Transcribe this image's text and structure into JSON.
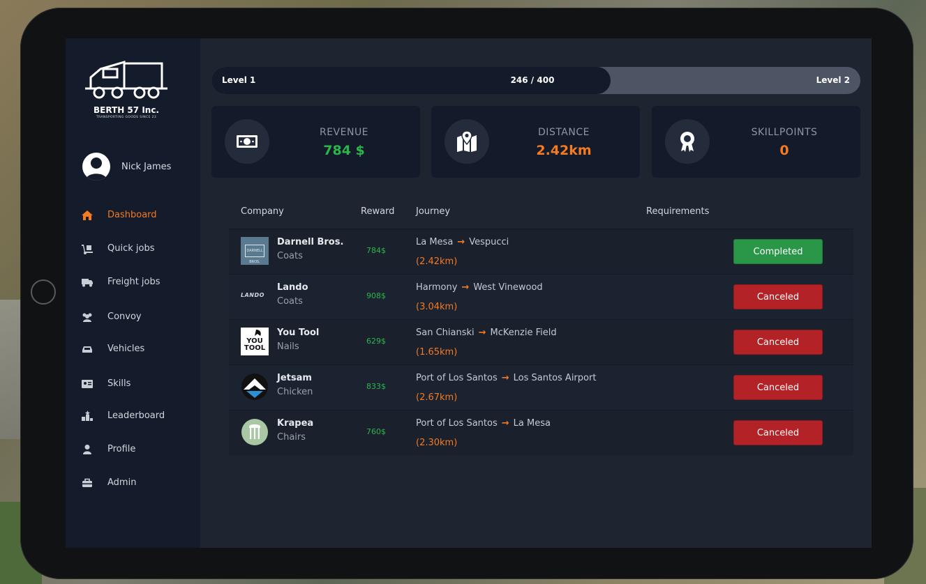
{
  "brand": {
    "name": "BERTH 57 Inc.",
    "tagline": "TRANSPORTING GOODS SINCE 23"
  },
  "user": {
    "name": "Nick James"
  },
  "nav": [
    {
      "label": "Dashboard",
      "icon": "home-icon",
      "active": true
    },
    {
      "label": "Quick jobs",
      "icon": "hand-truck-icon"
    },
    {
      "label": "Freight jobs",
      "icon": "truck-icon"
    },
    {
      "label": "Convoy",
      "icon": "users-icon"
    },
    {
      "label": "Vehicles",
      "icon": "car-icon"
    },
    {
      "label": "Skills",
      "icon": "id-card-icon"
    },
    {
      "label": "Leaderboard",
      "icon": "podium-icon"
    },
    {
      "label": "Profile",
      "icon": "user-icon"
    },
    {
      "label": "Admin",
      "icon": "toolbox-icon"
    }
  ],
  "level": {
    "current": "Level 1",
    "progress": "246 / 400",
    "next": "Level 2",
    "fraction": 0.615
  },
  "stats": [
    {
      "label": "REVENUE",
      "value": "784 $",
      "icon": "money-icon",
      "color": "#2bb64c"
    },
    {
      "label": "DISTANCE",
      "value": "2.42km",
      "icon": "map-icon",
      "color": "#f57a20"
    },
    {
      "label": "SKILLPOINTS",
      "value": "0",
      "icon": "award-icon",
      "color": "#f57a20"
    }
  ],
  "table": {
    "headers": {
      "company": "Company",
      "reward": "Reward",
      "journey": "Journey",
      "requirements": "Requirements"
    },
    "rows": [
      {
        "company": "Darnell Bros.",
        "cargo": "Coats",
        "logo_text": "DARNELL BROS.",
        "reward": "784$",
        "from": "La Mesa",
        "to": "Vespucci",
        "distance": "(2.42km)",
        "status": "Completed"
      },
      {
        "company": "Lando",
        "cargo": "Coats",
        "logo_text": "LANDO",
        "reward": "908$",
        "from": "Harmony",
        "to": "West Vinewood",
        "distance": "(3.04km)",
        "status": "Canceled"
      },
      {
        "company": "You Tool",
        "cargo": "Nails",
        "logo_text": "YOU TOOL",
        "reward": "629$",
        "from": "San Chianski",
        "to": "McKenzie Field",
        "distance": "(1.65km)",
        "status": "Canceled"
      },
      {
        "company": "Jetsam",
        "cargo": "Chicken",
        "reward": "833$",
        "from": "Port of Los Santos",
        "to": "Los Santos Airport",
        "distance": "(2.67km)",
        "status": "Canceled"
      },
      {
        "company": "Krapea",
        "cargo": "Chairs",
        "reward": "760$",
        "from": "Port of Los Santos",
        "to": "La Mesa",
        "distance": "(2.30km)",
        "status": "Canceled"
      }
    ]
  },
  "colors": {
    "accent": "#f57a20",
    "success": "#2a9648",
    "danger": "#b22226",
    "sidebar": "#141b2b",
    "panel": "#131a29"
  }
}
